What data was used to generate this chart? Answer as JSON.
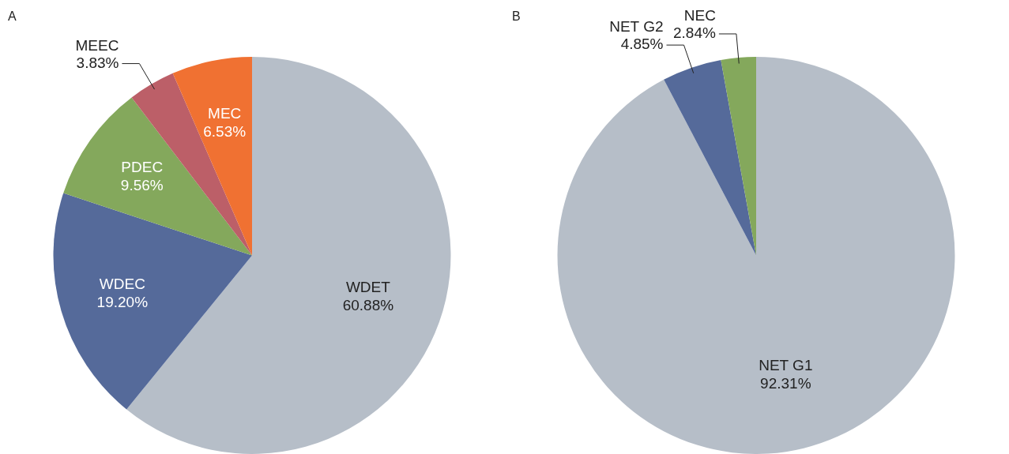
{
  "chart_data": [
    {
      "type": "pie",
      "title": "A",
      "categories": [
        "WDET",
        "WDEC",
        "PDEC",
        "MEEC",
        "MEC"
      ],
      "values": [
        60.88,
        19.2,
        9.56,
        3.83,
        6.53
      ],
      "colors": [
        "#b6bec8",
        "#556a9a",
        "#84a85c",
        "#bc5f68",
        "#f07132"
      ],
      "value_labels": [
        "60.88%",
        "19.20%",
        "9.56%",
        "3.83%",
        "6.53%"
      ]
    },
    {
      "type": "pie",
      "title": "B",
      "categories": [
        "NET G1",
        "NET G2",
        "NEC"
      ],
      "values": [
        92.31,
        4.85,
        2.84
      ],
      "colors": [
        "#b6bec8",
        "#556a9a",
        "#84a85c"
      ],
      "value_labels": [
        "92.31%",
        "4.85%",
        "2.84%"
      ]
    }
  ]
}
